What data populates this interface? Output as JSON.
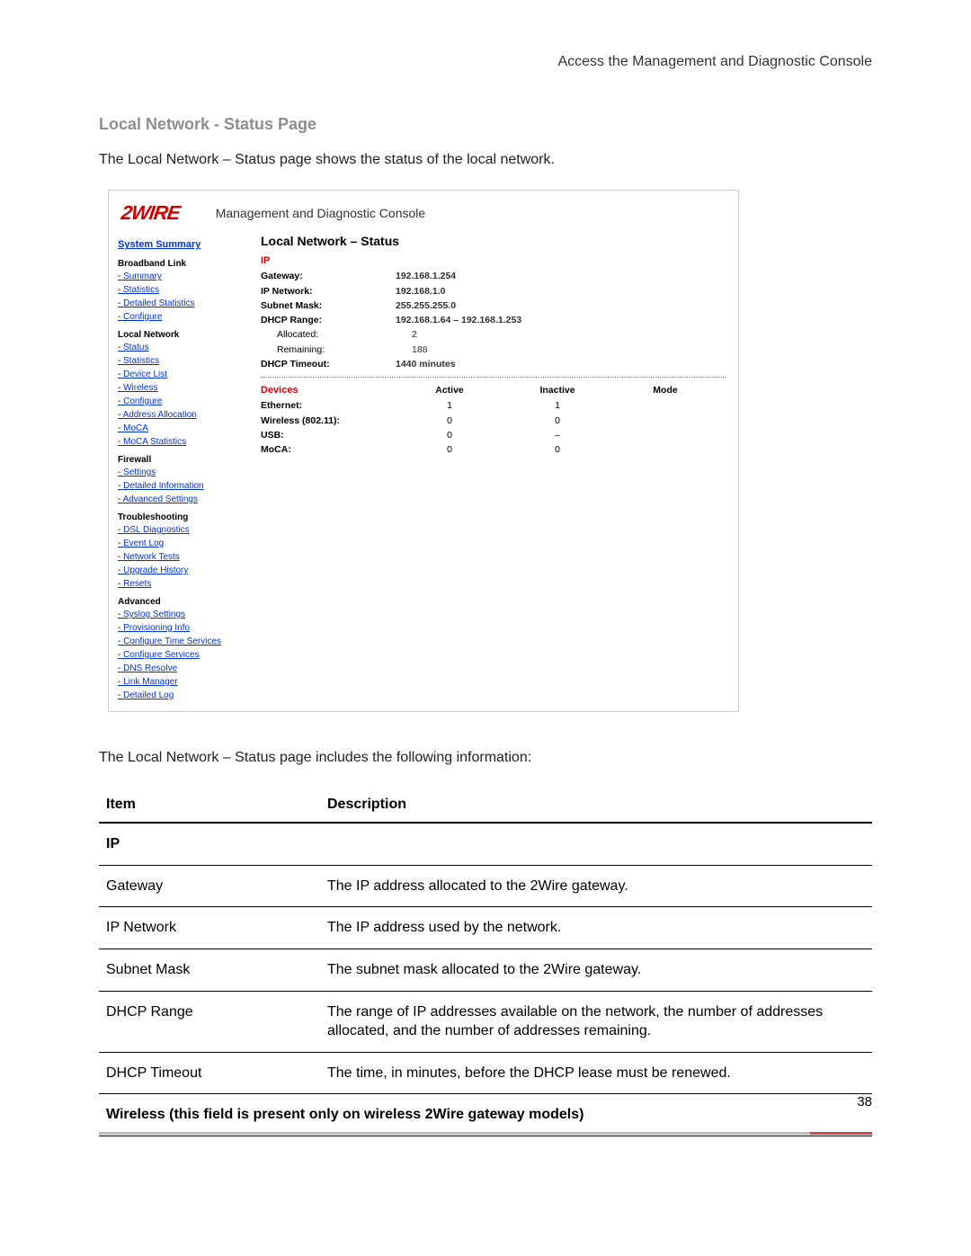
{
  "running_head": "Access the Management and Diagnostic Console",
  "section_title": "Local Network - Status Page",
  "intro": "The Local Network – Status page shows the status of the local network.",
  "after_shot": "The Local Network – Status page includes the following information:",
  "page_number": "38",
  "shot": {
    "logo": "2WIRE",
    "mdc": "Management and Diagnostic Console",
    "panel_title": "Local Network – Status",
    "side": {
      "system_summary": "System Summary",
      "groups": [
        {
          "heading": "Broadband Link",
          "items": [
            "Summary",
            "Statistics",
            "Detailed Statistics",
            "Configure"
          ]
        },
        {
          "heading": "Local Network",
          "items": [
            "Status",
            "Statistics",
            "Device List",
            "Wireless",
            "Configure",
            "Address Allocation",
            "MoCA",
            "MoCA Statistics"
          ]
        },
        {
          "heading": "Firewall",
          "items": [
            "Settings",
            "Detailed Information",
            "Advanced Settings"
          ]
        },
        {
          "heading": "Troubleshooting",
          "items": [
            "DSL Diagnostics",
            "Event Log",
            "Network Tests",
            "Upgrade History",
            "Resets"
          ]
        },
        {
          "heading": "Advanced",
          "items": [
            "Syslog Settings",
            "Provisioning Info",
            "Configure Time Services",
            "Configure Services",
            "DNS Resolve",
            "Link Manager",
            "Detailed Log"
          ]
        }
      ]
    },
    "ip": {
      "label": "IP",
      "rows": [
        {
          "k": "Gateway:",
          "v": "192.168.1.254",
          "bold": true
        },
        {
          "k": "IP Network:",
          "v": "192.168.1.0",
          "bold": true
        },
        {
          "k": "Subnet Mask:",
          "v": "255.255.255.0",
          "bold": true
        },
        {
          "k": "DHCP Range:",
          "v": "192.168.1.64 – 192.168.1.253",
          "bold": true
        },
        {
          "k": "Allocated:",
          "v": "2",
          "bold": false,
          "indent": true
        },
        {
          "k": "Remaining:",
          "v": "188",
          "bold": false,
          "indent": true
        },
        {
          "k": "DHCP Timeout:",
          "v": "1440 minutes",
          "bold": true
        }
      ]
    },
    "devices": {
      "label": "Devices",
      "cols": [
        "Active",
        "Inactive",
        "Mode"
      ],
      "rows": [
        {
          "name": "Ethernet:",
          "active": "1",
          "inactive": "1",
          "mode": ""
        },
        {
          "name": "Wireless (802.11):",
          "active": "0",
          "inactive": "0",
          "mode": ""
        },
        {
          "name": "USB:",
          "active": "0",
          "inactive": "–",
          "mode": ""
        },
        {
          "name": "MoCA:",
          "active": "0",
          "inactive": "0",
          "mode": ""
        }
      ]
    }
  },
  "table": {
    "head": {
      "item": "Item",
      "desc": "Description"
    },
    "rows": [
      {
        "section": true,
        "item": "IP",
        "desc": ""
      },
      {
        "item": "Gateway",
        "desc": "The IP address allocated to the 2Wire gateway."
      },
      {
        "item": "IP Network",
        "desc": "The IP address used by the network."
      },
      {
        "item": "Subnet Mask",
        "desc": "The subnet mask allocated to the 2Wire gateway."
      },
      {
        "item": "DHCP Range",
        "desc": "The range of IP addresses available on the network, the number of addresses allocated, and the number of addresses remaining."
      },
      {
        "item": "DHCP Timeout",
        "desc": "The time, in minutes, before the DHCP lease must be renewed."
      },
      {
        "section": true,
        "item": "Wireless (this field is present only on wireless 2Wire gateway models)",
        "desc": ""
      }
    ]
  }
}
